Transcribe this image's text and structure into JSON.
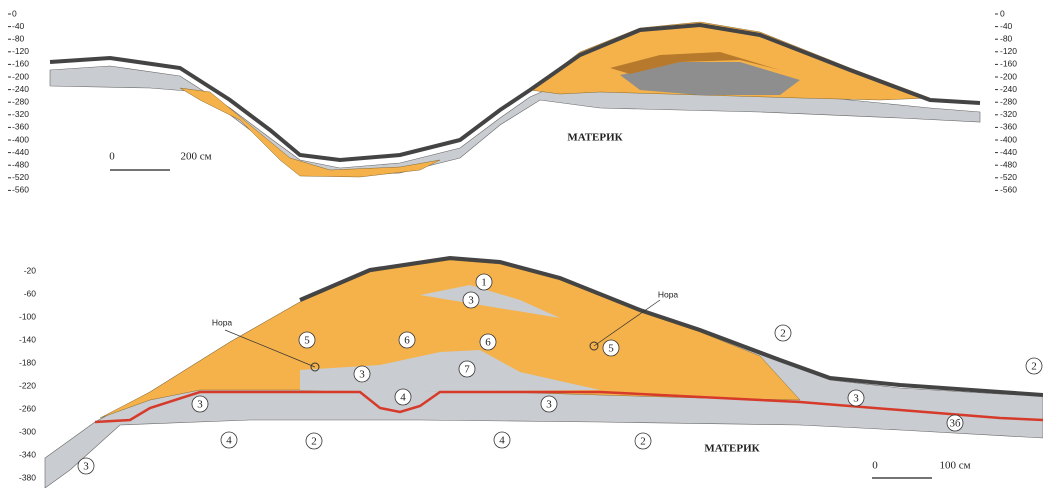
{
  "top_section": {
    "depth_scale_left": [
      "0",
      "-40",
      "-80",
      "-120",
      "-160",
      "-200",
      "-240",
      "-280",
      "-320",
      "-360",
      "-400",
      "-440",
      "-480",
      "-520",
      "-560"
    ],
    "depth_scale_right": [
      "0",
      "-40",
      "-80",
      "-120",
      "-160",
      "-200",
      "-240",
      "-280",
      "-320",
      "-360",
      "-400",
      "-440",
      "-480",
      "-520",
      "-560"
    ],
    "label": "МАТЕРИК",
    "scale_bar": {
      "start": "0",
      "end": "200 см"
    }
  },
  "bottom_section": {
    "depth_scale": [
      "-20",
      "-60",
      "-100",
      "-140",
      "-180",
      "-220",
      "-260",
      "-300",
      "-340",
      "-380"
    ],
    "label": "МАТЕРИК",
    "scale_bar": {
      "start": "0",
      "end": "100 см"
    },
    "burrow_labels": [
      "Нора",
      "Нора"
    ],
    "layer_markers": [
      "1",
      "3",
      "5",
      "6",
      "6",
      "5",
      "3",
      "7",
      "4",
      "3",
      "3",
      "4",
      "2",
      "4",
      "2",
      "3",
      "2",
      "3",
      "3б",
      "2"
    ]
  }
}
